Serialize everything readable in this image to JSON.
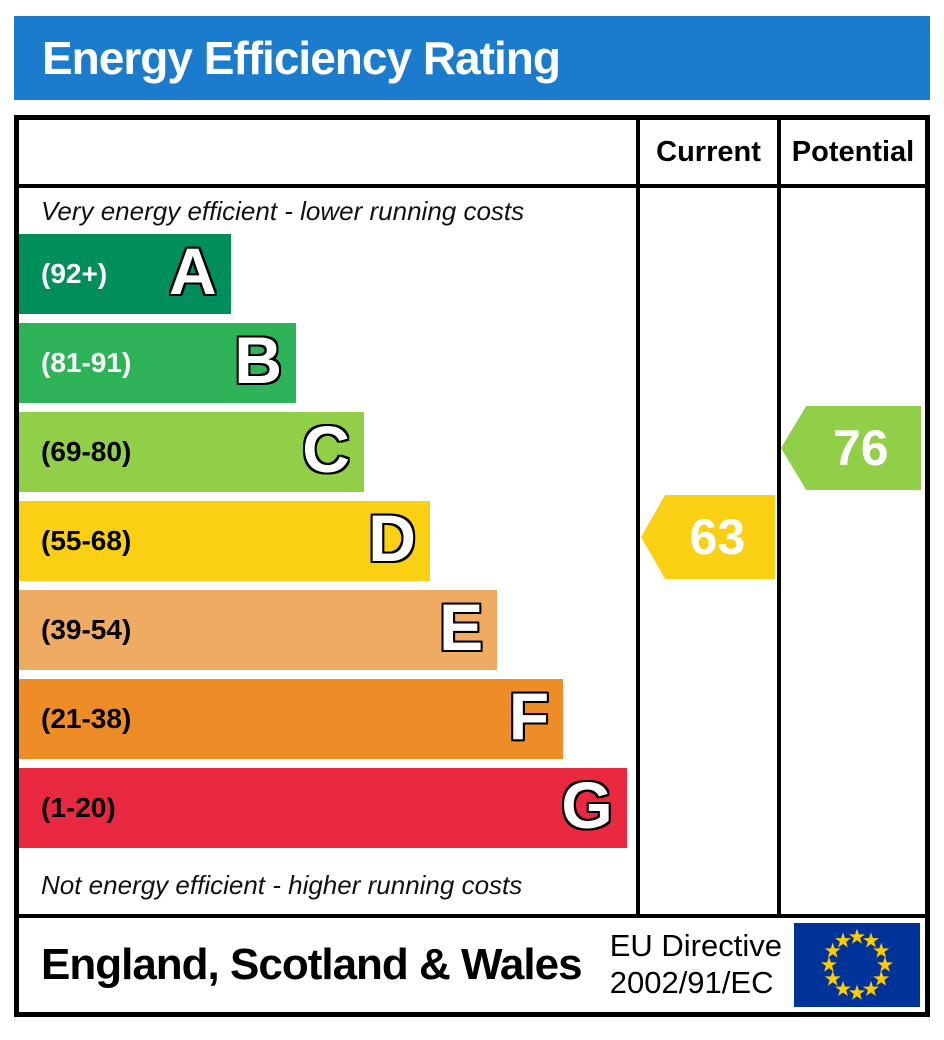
{
  "title": "Energy Efficiency Rating",
  "columns": {
    "current": "Current",
    "potential": "Potential"
  },
  "captions": {
    "top": "Very energy efficient - lower running costs",
    "bottom": "Not energy efficient - higher running costs"
  },
  "footer": {
    "region": "England, Scotland & Wales",
    "directive_line1": "EU Directive",
    "directive_line2": "2002/91/EC",
    "flag_icon": "eu-flag-icon"
  },
  "colors": {
    "header_bg": "#1b7cce",
    "border": "#000000",
    "eu_flag_blue": "#003399",
    "eu_flag_star": "#ffcc00"
  },
  "chart_data": {
    "type": "bar",
    "title": "Energy Efficiency Rating",
    "bands": [
      {
        "letter": "A",
        "range": "(92+)",
        "color": "#008f5a",
        "label_color": "#ffffff",
        "width_pct": 34.3
      },
      {
        "letter": "B",
        "range": "(81-91)",
        "color": "#2eb358",
        "label_color": "#ffffff",
        "width_pct": 44.9
      },
      {
        "letter": "C",
        "range": "(69-80)",
        "color": "#92cf48",
        "label_color": "#000000",
        "width_pct": 55.9
      },
      {
        "letter": "D",
        "range": "(55-68)",
        "color": "#f9d013",
        "label_color": "#000000",
        "width_pct": 66.6
      },
      {
        "letter": "E",
        "range": "(39-54)",
        "color": "#f0ab63",
        "label_color": "#000000",
        "width_pct": 77.5
      },
      {
        "letter": "F",
        "range": "(21-38)",
        "color": "#ee8c28",
        "label_color": "#000000",
        "width_pct": 88.2
      },
      {
        "letter": "G",
        "range": "(1-20)",
        "color": "#e9293f",
        "label_color": "#000000",
        "width_pct": 98.5
      }
    ],
    "current": {
      "value": 63,
      "band": "D",
      "color": "#f9d013"
    },
    "potential": {
      "value": 76,
      "band": "C",
      "color": "#92cf48"
    }
  }
}
